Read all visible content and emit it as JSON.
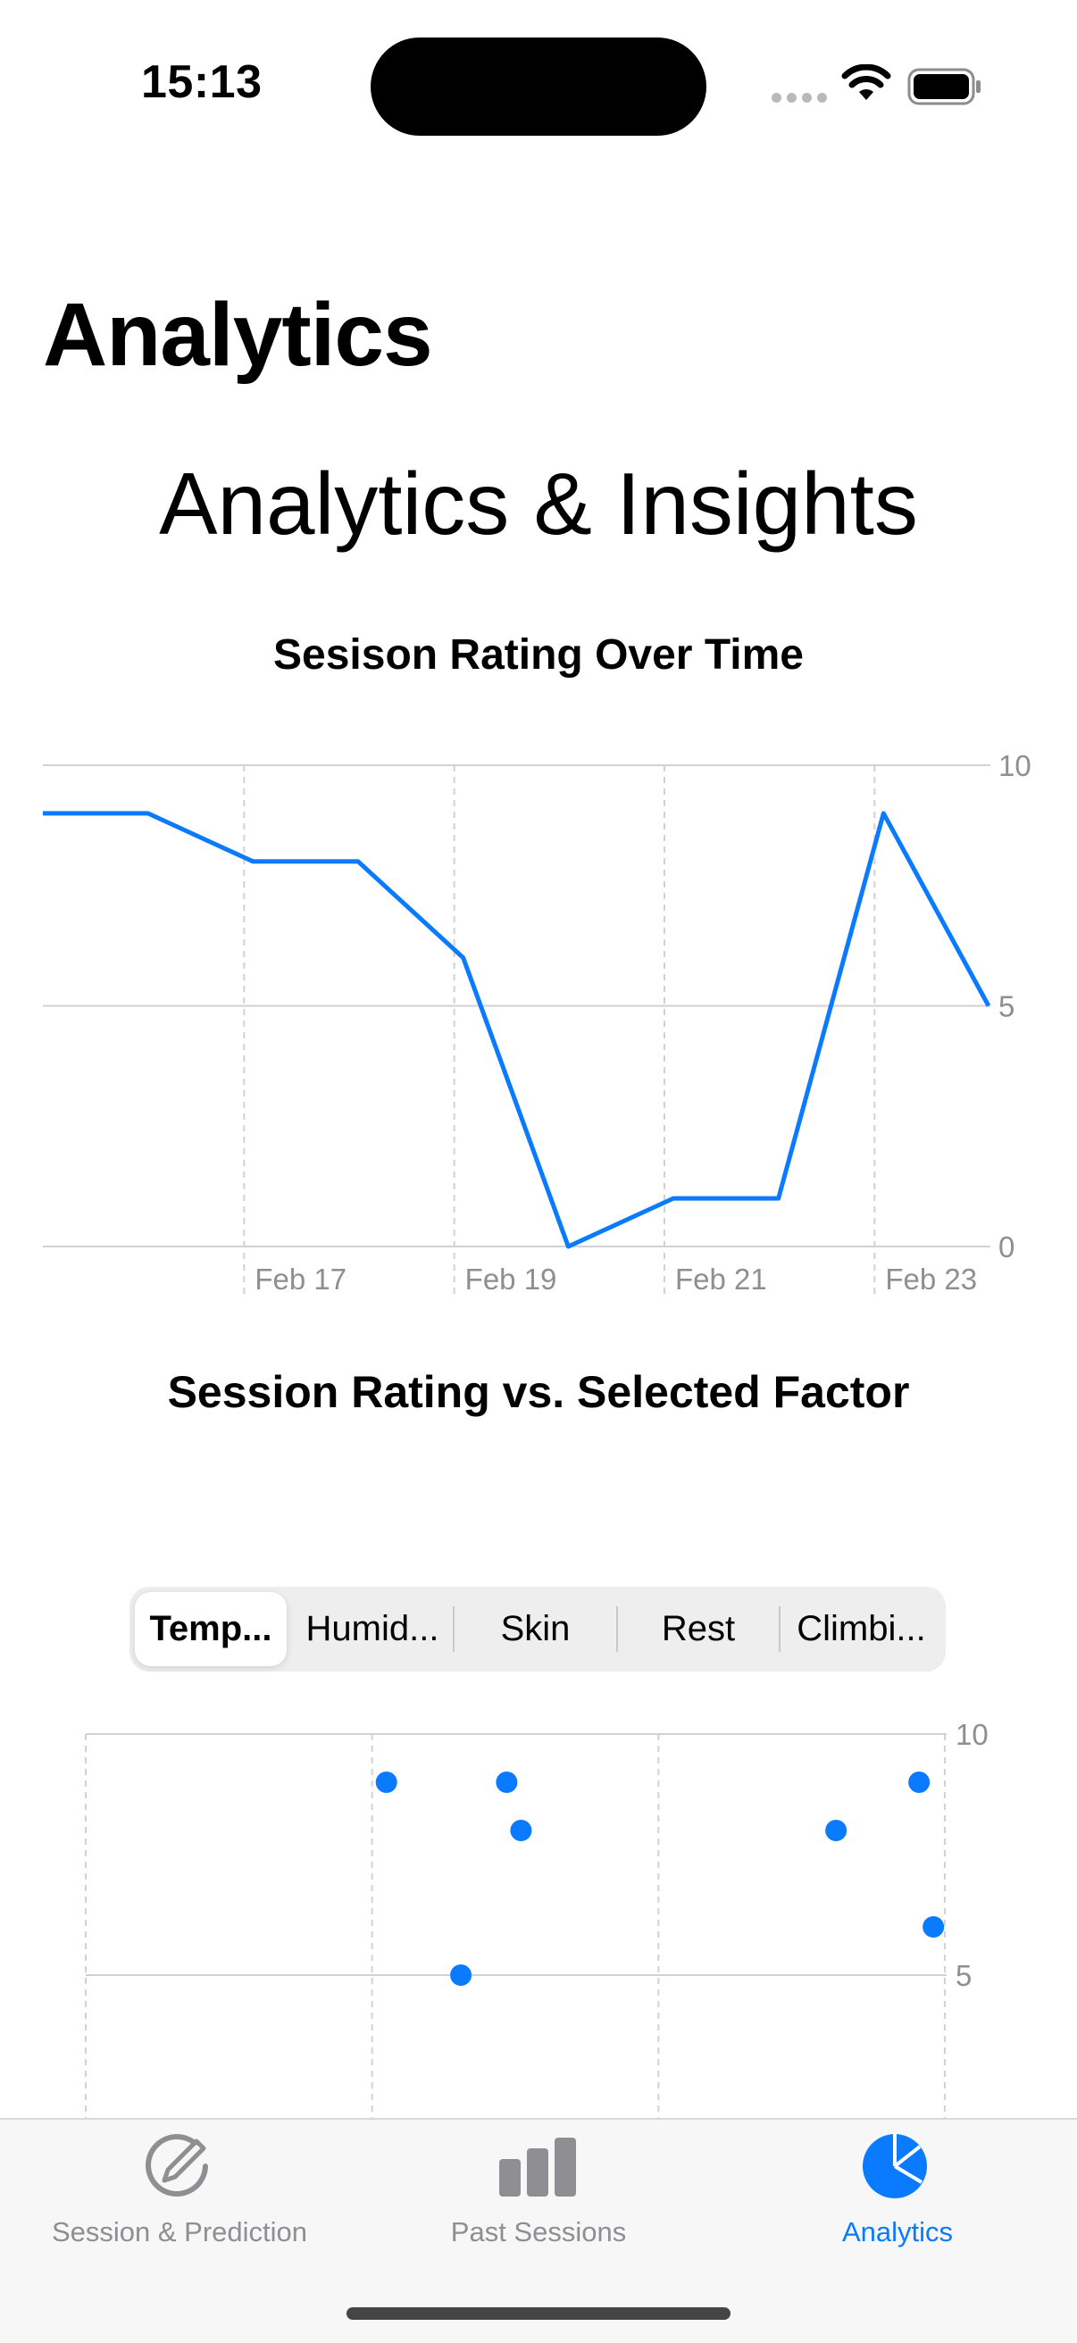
{
  "status_bar": {
    "time": "15:13"
  },
  "nav": {
    "large_title": "Analytics"
  },
  "main": {
    "section_title": "Analytics & Insights",
    "line_chart_title": "Sesison Rating Over Time",
    "scatter_chart_title": "Session Rating vs. Selected Factor"
  },
  "factor_picker": {
    "selected_index": 0,
    "segments": [
      {
        "label": "Temp..."
      },
      {
        "label": "Humid..."
      },
      {
        "label": "Skin"
      },
      {
        "label": "Rest"
      },
      {
        "label": "Climbi..."
      }
    ]
  },
  "tabs": [
    {
      "label": "Session & Prediction",
      "icon": "pencil-circle-icon",
      "active": false
    },
    {
      "label": "Past Sessions",
      "icon": "bar-chart-icon",
      "active": false
    },
    {
      "label": "Analytics",
      "icon": "pie-chart-icon",
      "active": true
    }
  ],
  "colors": {
    "accent": "#0a7aff",
    "inactive": "#8e8e93",
    "grid": "#d1d1d6",
    "axis_label": "#8e8e93"
  },
  "chart_data": [
    {
      "type": "line",
      "title": "Sesison Rating Over Time",
      "x_unit": "date",
      "x": [
        "Feb 15",
        "Feb 16",
        "Feb 17",
        "Feb 18",
        "Feb 19",
        "Feb 20",
        "Feb 21",
        "Feb 22",
        "Feb 23",
        "Feb 24"
      ],
      "y": [
        9,
        9,
        8,
        8,
        6,
        0,
        1,
        1,
        9,
        5
      ],
      "x_ticks": [
        "Feb 17",
        "Feb 19",
        "Feb 21",
        "Feb 23"
      ],
      "y_ticks": [
        "0",
        "5",
        "10"
      ],
      "ylim": [
        0,
        10
      ],
      "y_axis_position": "right",
      "grid": true
    },
    {
      "type": "scatter",
      "title": "Session Rating vs. Selected Factor",
      "points": [
        {
          "x": 1.05,
          "y": 9
        },
        {
          "x": 1.47,
          "y": 9
        },
        {
          "x": 1.52,
          "y": 8
        },
        {
          "x": 1.31,
          "y": 5
        },
        {
          "x": 2.62,
          "y": 8
        },
        {
          "x": 2.91,
          "y": 9
        },
        {
          "x": 2.96,
          "y": 6
        }
      ],
      "xlim": [
        0,
        3
      ],
      "y_ticks": [
        "5",
        "10"
      ],
      "ylim": [
        0,
        10
      ],
      "visible_ylim": [
        4.1,
        10
      ],
      "y_axis_position": "right",
      "grid": true
    }
  ]
}
